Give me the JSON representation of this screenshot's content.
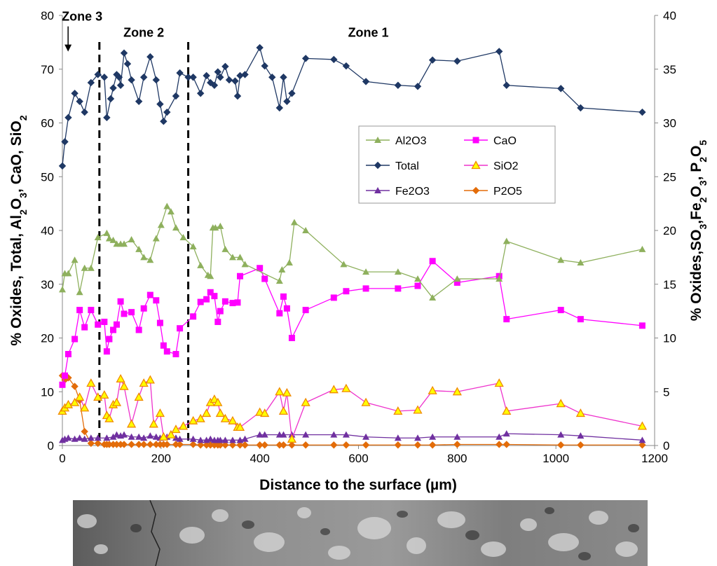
{
  "chart_data": {
    "type": "line",
    "xlabel": "Distance to the surface (µm)",
    "ylabel_left": "% Oxides, Total, Al2O3, CaO, SiO2",
    "ylabel_right": "% Oxides,SO3,Fe2O3, P2O5",
    "xlim": [
      0,
      1200
    ],
    "ylim_left": [
      0,
      80
    ],
    "ylim_right": [
      0,
      40
    ],
    "x_ticks": [
      0,
      200,
      400,
      600,
      800,
      1000,
      1200
    ],
    "y_left_ticks": [
      0,
      10,
      20,
      30,
      40,
      50,
      60,
      70,
      80
    ],
    "y_right_ticks": [
      0,
      5,
      10,
      15,
      20,
      25,
      30,
      35,
      40
    ],
    "grid": false,
    "legend_position": "upper-right-inside",
    "zone_lines_x": [
      75,
      255
    ],
    "annotations": [
      {
        "text": "Zone 3",
        "x": 40,
        "y": 79,
        "arrow": true
      },
      {
        "text": "Zone 2",
        "x": 165,
        "y": 76
      },
      {
        "text": "Zone 1",
        "x": 620,
        "y": 76
      }
    ],
    "series": [
      {
        "name": "Total",
        "axis": "left",
        "color": "#1f3864",
        "marker": "diamond",
        "x": [
          0,
          5,
          12,
          25,
          35,
          45,
          58,
          72,
          85,
          90,
          98,
          103,
          110,
          115,
          118,
          125,
          132,
          140,
          155,
          165,
          178,
          190,
          198,
          205,
          212,
          230,
          238,
          255,
          265,
          280,
          292,
          300,
          308,
          315,
          320,
          330,
          338,
          350,
          355,
          360,
          370,
          400,
          410,
          425,
          440,
          448,
          455,
          465,
          493,
          550,
          575,
          615,
          680,
          720,
          750,
          800,
          885,
          900,
          1010,
          1050,
          1175
        ],
        "y": [
          52,
          56.5,
          61,
          65.5,
          64,
          62,
          67.5,
          69,
          68.5,
          61,
          64.5,
          66.5,
          69,
          68.5,
          67,
          73,
          71,
          68,
          64,
          68.5,
          72.3,
          68,
          63.5,
          60.3,
          62,
          65,
          69.3,
          68.5,
          68.5,
          65.5,
          68.8,
          67.5,
          67,
          69.5,
          68.5,
          70.5,
          68,
          67.8,
          65,
          68.8,
          69,
          74,
          70.6,
          68.5,
          62.8,
          68.5,
          64,
          65.5,
          72,
          71.8,
          70.6,
          67.7,
          67,
          66.8,
          71.7,
          71.5,
          73.3,
          67,
          66.4,
          62.8,
          62
        ]
      },
      {
        "name": "Al2O3",
        "axis": "left",
        "color": "#8eb05d",
        "marker": "triangle",
        "x": [
          0,
          5,
          12,
          25,
          35,
          45,
          58,
          72,
          90,
          95,
          103,
          110,
          118,
          125,
          140,
          155,
          165,
          178,
          190,
          200,
          212,
          220,
          230,
          245,
          265,
          280,
          295,
          300,
          305,
          310,
          320,
          330,
          345,
          360,
          370,
          440,
          445,
          460,
          470,
          493,
          570,
          615,
          680,
          720,
          750,
          800,
          885,
          900,
          1010,
          1050,
          1175
        ],
        "y": [
          29,
          32,
          32,
          34.5,
          28.5,
          33,
          33,
          38.7,
          39.5,
          38.5,
          38.2,
          37.5,
          37.5,
          37.5,
          38.3,
          36.5,
          35,
          34.5,
          38.5,
          41,
          44.5,
          43.5,
          40.5,
          38.7,
          37,
          33.5,
          31.7,
          31.5,
          40.5,
          40.5,
          40.8,
          36.5,
          35,
          35,
          33.7,
          30.6,
          32.7,
          34,
          41.5,
          40,
          33.7,
          32.3,
          32.3,
          31,
          27.5,
          31,
          31,
          38,
          34.5,
          34,
          36.5
        ]
      },
      {
        "name": "CaO",
        "axis": "left",
        "color": "#ff00ff",
        "marker": "square",
        "x": [
          0,
          5,
          12,
          25,
          35,
          45,
          58,
          72,
          85,
          90,
          95,
          103,
          110,
          118,
          125,
          140,
          155,
          165,
          178,
          190,
          198,
          205,
          212,
          230,
          238,
          265,
          280,
          292,
          300,
          308,
          315,
          320,
          330,
          345,
          355,
          360,
          400,
          410,
          440,
          448,
          455,
          465,
          493,
          550,
          575,
          615,
          680,
          720,
          750,
          800,
          885,
          900,
          1010,
          1050,
          1175
        ],
        "y": [
          11.3,
          13,
          17,
          19.8,
          25.2,
          22,
          25.2,
          22.5,
          23,
          17.5,
          19.8,
          21.5,
          22.5,
          26.8,
          24.5,
          24.8,
          21.5,
          25.5,
          28,
          27,
          22.8,
          18.6,
          17.5,
          17,
          21.8,
          24,
          26.7,
          27.2,
          28.5,
          27.8,
          23,
          25,
          26.8,
          26.5,
          26.6,
          31.5,
          33,
          31,
          24.6,
          27.7,
          25.5,
          20,
          25.2,
          27.5,
          28.7,
          29.2,
          29.2,
          29.7,
          34.3,
          30.3,
          31.5,
          23.5,
          25.2,
          23.5,
          22.3
        ]
      },
      {
        "name": "SiO2",
        "axis": "right",
        "color": "#ee33cc",
        "marker": "triangle-yellow",
        "x": [
          0,
          5,
          12,
          25,
          35,
          45,
          58,
          72,
          85,
          90,
          95,
          103,
          110,
          118,
          125,
          140,
          155,
          165,
          178,
          185,
          198,
          205,
          220,
          230,
          245,
          265,
          280,
          292,
          300,
          308,
          315,
          320,
          330,
          345,
          355,
          360,
          400,
          410,
          440,
          448,
          455,
          465,
          493,
          550,
          575,
          615,
          680,
          720,
          750,
          800,
          885,
          900,
          1010,
          1050,
          1175
        ],
        "y": [
          3.2,
          3.5,
          3.8,
          4,
          4.5,
          3.5,
          5.8,
          4.5,
          4.7,
          2.8,
          2.5,
          3.8,
          4,
          6.2,
          5.5,
          2,
          4.5,
          5.8,
          6.1,
          2,
          3,
          0.8,
          1,
          1.5,
          1.8,
          2.3,
          2.5,
          3,
          4,
          4.3,
          4,
          3,
          2.5,
          2.3,
          1.7,
          1.7,
          3.1,
          3,
          5,
          3.2,
          4.9,
          0.6,
          4,
          5.2,
          5.3,
          4,
          3.2,
          3.3,
          5.1,
          5,
          5.8,
          3.2,
          3.9,
          3,
          1.8
        ]
      },
      {
        "name": "Fe2O3",
        "axis": "right",
        "color": "#7030a0",
        "marker": "triangle",
        "x": [
          0,
          5,
          12,
          25,
          35,
          45,
          58,
          72,
          90,
          103,
          110,
          118,
          125,
          140,
          155,
          165,
          178,
          190,
          198,
          205,
          212,
          230,
          238,
          265,
          280,
          292,
          300,
          308,
          315,
          320,
          330,
          345,
          360,
          370,
          400,
          410,
          440,
          448,
          465,
          493,
          550,
          575,
          615,
          680,
          720,
          750,
          800,
          885,
          900,
          1010,
          1050,
          1175
        ],
        "y": [
          0.5,
          0.6,
          0.7,
          0.6,
          0.7,
          0.6,
          0.7,
          0.7,
          0.7,
          0.8,
          1,
          0.9,
          1,
          0.8,
          0.8,
          0.7,
          0.9,
          0.8,
          0.7,
          0.8,
          0.8,
          0.7,
          0.6,
          0.6,
          0.5,
          0.5,
          0.6,
          0.5,
          0.5,
          0.5,
          0.5,
          0.5,
          0.5,
          0.6,
          1,
          1,
          1,
          1,
          1,
          1,
          1,
          1,
          0.8,
          0.7,
          0.7,
          0.8,
          0.8,
          0.8,
          1.1,
          1,
          0.9,
          0.5
        ]
      },
      {
        "name": "P2O5",
        "axis": "right",
        "color": "#e36c09",
        "marker": "diamond",
        "x": [
          0,
          5,
          12,
          25,
          35,
          45,
          58,
          72,
          85,
          90,
          95,
          103,
          110,
          118,
          125,
          140,
          155,
          165,
          178,
          190,
          198,
          205,
          212,
          230,
          238,
          265,
          280,
          292,
          300,
          308,
          315,
          320,
          330,
          345,
          360,
          370,
          400,
          410,
          440,
          448,
          465,
          493,
          550,
          575,
          615,
          680,
          720,
          750,
          800,
          885,
          900,
          1010,
          1050,
          1175
        ],
        "y": [
          6.5,
          6.1,
          6.3,
          5.5,
          4.2,
          1.3,
          0.2,
          0.2,
          0.1,
          0.1,
          0.1,
          0.1,
          0.1,
          0.1,
          0.1,
          0.1,
          0.1,
          0.1,
          0.1,
          0.1,
          0.1,
          0.1,
          0.1,
          0.1,
          0.1,
          0.1,
          0.05,
          0.05,
          0.05,
          0.05,
          0.05,
          0.05,
          0.05,
          0.05,
          0.05,
          0.05,
          0.05,
          0.05,
          0.05,
          0.05,
          0.05,
          0.05,
          0.05,
          0.05,
          0.05,
          0.05,
          0.05,
          0.05,
          0.1,
          0.1,
          0.1,
          0.05,
          0.05,
          0.05
        ]
      }
    ]
  }
}
